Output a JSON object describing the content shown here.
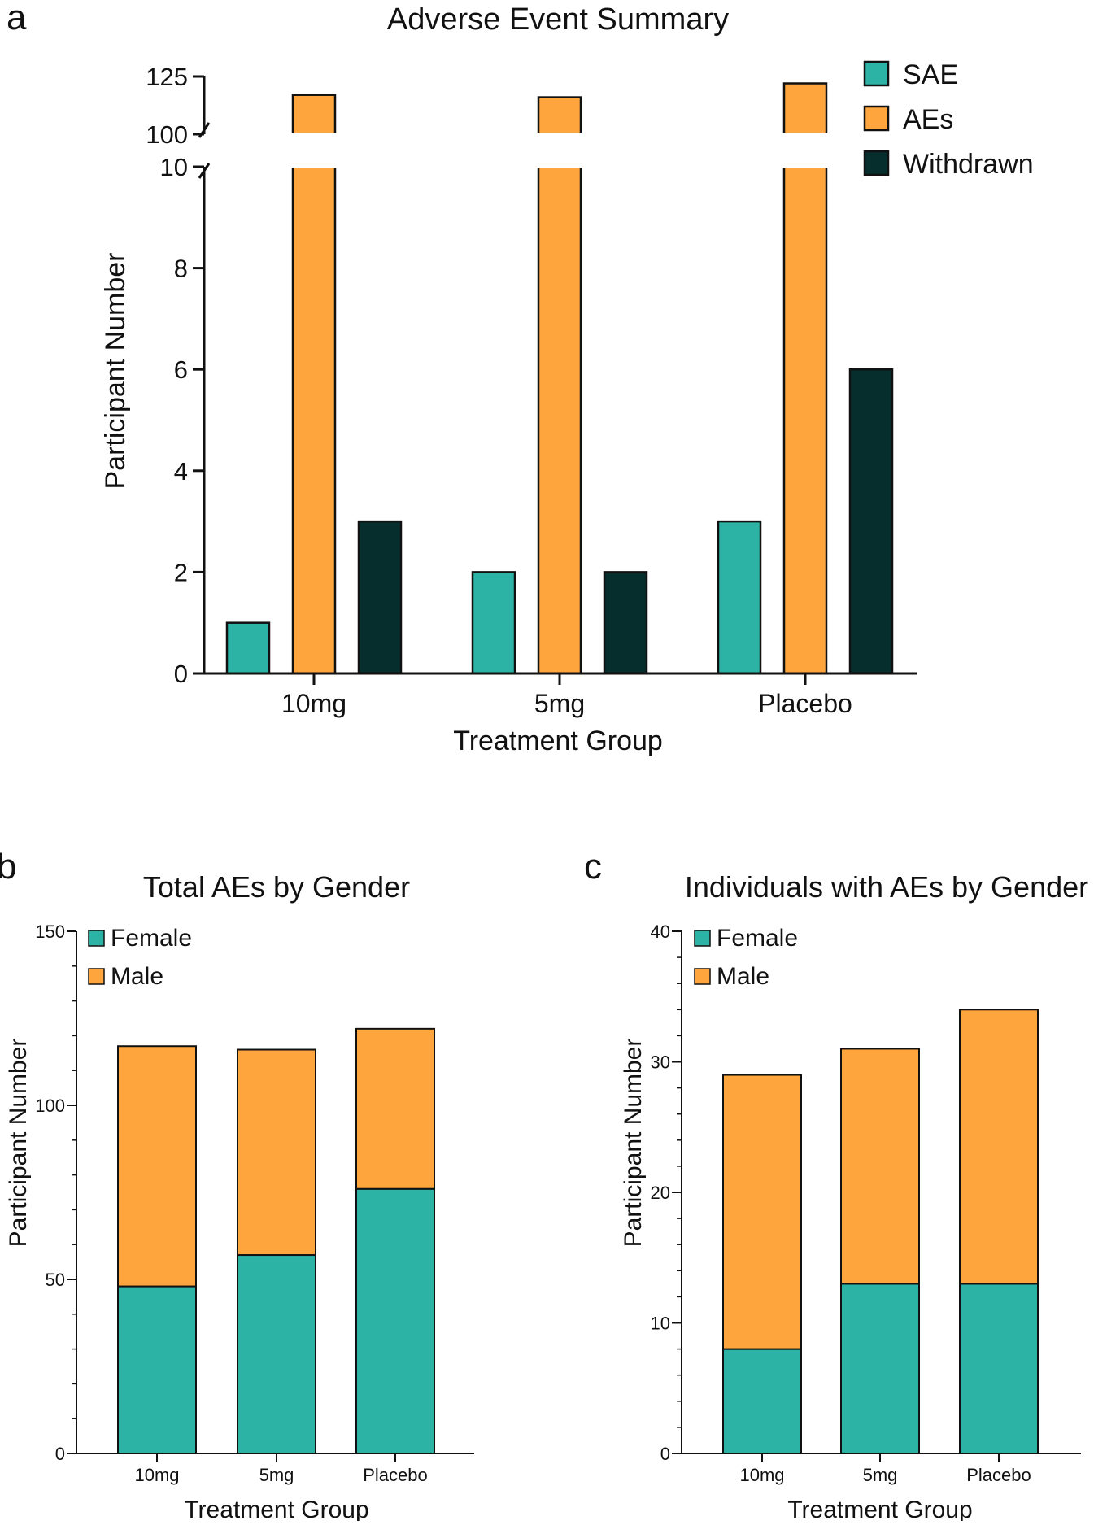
{
  "colors": {
    "sae": "#2db3a6",
    "aes": "#ffa53d",
    "withdrawn": "#062e2c",
    "female": "#2db3a6",
    "male": "#ffa53d",
    "axis": "#111111"
  },
  "chart_data": [
    {
      "panel": "a",
      "type": "bar",
      "title": "Adverse Event Summary",
      "xlabel": "Treatment Group",
      "ylabel": "Participant Number",
      "categories": [
        "10mg",
        "5mg",
        "Placebo"
      ],
      "series": [
        {
          "name": "SAE",
          "values": [
            1,
            2,
            3
          ]
        },
        {
          "name": "AEs",
          "values": [
            117,
            116,
            122
          ]
        },
        {
          "name": "Withdrawn",
          "values": [
            3,
            2,
            6
          ]
        }
      ],
      "axis_break": {
        "lower": [
          0,
          10
        ],
        "upper": [
          100,
          125
        ]
      },
      "yticks_lower": [
        "0",
        "2",
        "4",
        "6",
        "8",
        "10"
      ],
      "yticks_upper": [
        "100",
        "125"
      ],
      "legend_position": "top-right"
    },
    {
      "panel": "b",
      "type": "bar",
      "stacked": true,
      "title": "Total AEs by Gender",
      "xlabel": "Treatment Group",
      "ylabel": "Participant Number",
      "categories": [
        "10mg",
        "5mg",
        "Placebo"
      ],
      "series": [
        {
          "name": "Female",
          "values": [
            48,
            57,
            76
          ]
        },
        {
          "name": "Male",
          "values": [
            69,
            59,
            46
          ]
        }
      ],
      "ylim": [
        0,
        150
      ],
      "yticks": [
        "0",
        "50",
        "100",
        "150"
      ],
      "legend_position": "top-left"
    },
    {
      "panel": "c",
      "type": "bar",
      "stacked": true,
      "title": "Individuals with AEs by Gender",
      "xlabel": "Treatment Group",
      "ylabel": "Participant Number",
      "categories": [
        "10mg",
        "5mg",
        "Placebo"
      ],
      "series": [
        {
          "name": "Female",
          "values": [
            8,
            13,
            13
          ]
        },
        {
          "name": "Male",
          "values": [
            21,
            18,
            21
          ]
        }
      ],
      "ylim": [
        0,
        40
      ],
      "yticks": [
        "0",
        "10",
        "20",
        "30",
        "40"
      ],
      "legend_position": "top-left"
    }
  ]
}
